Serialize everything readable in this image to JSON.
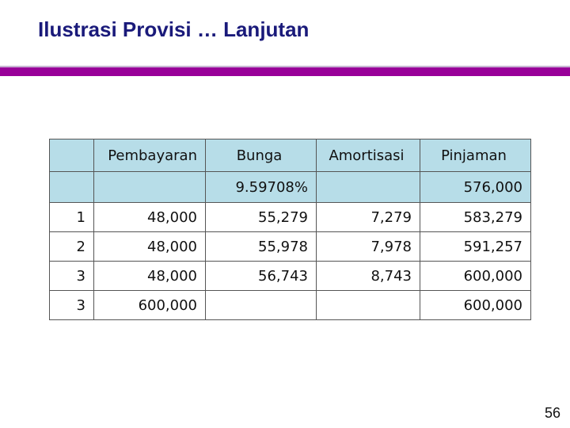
{
  "slide": {
    "title": "Ilustrasi Provisi … Lanjutan",
    "page_number": "56",
    "accent_color": "#990099"
  },
  "table": {
    "headers": [
      "",
      "Pembayaran",
      "Bunga",
      "Amortisasi",
      "Pinjaman"
    ],
    "subheader": [
      "",
      "",
      "9.59708%",
      "",
      "576,000"
    ],
    "rows": [
      [
        "1",
        "48,000",
        "55,279",
        "7,279",
        "583,279"
      ],
      [
        "2",
        "48,000",
        "55,978",
        "7,978",
        "591,257"
      ],
      [
        "3",
        "48,000",
        "56,743",
        "8,743",
        "600,000"
      ],
      [
        "3",
        "600,000",
        "",
        "",
        "600,000"
      ]
    ],
    "header_color": "#b7dde8"
  }
}
